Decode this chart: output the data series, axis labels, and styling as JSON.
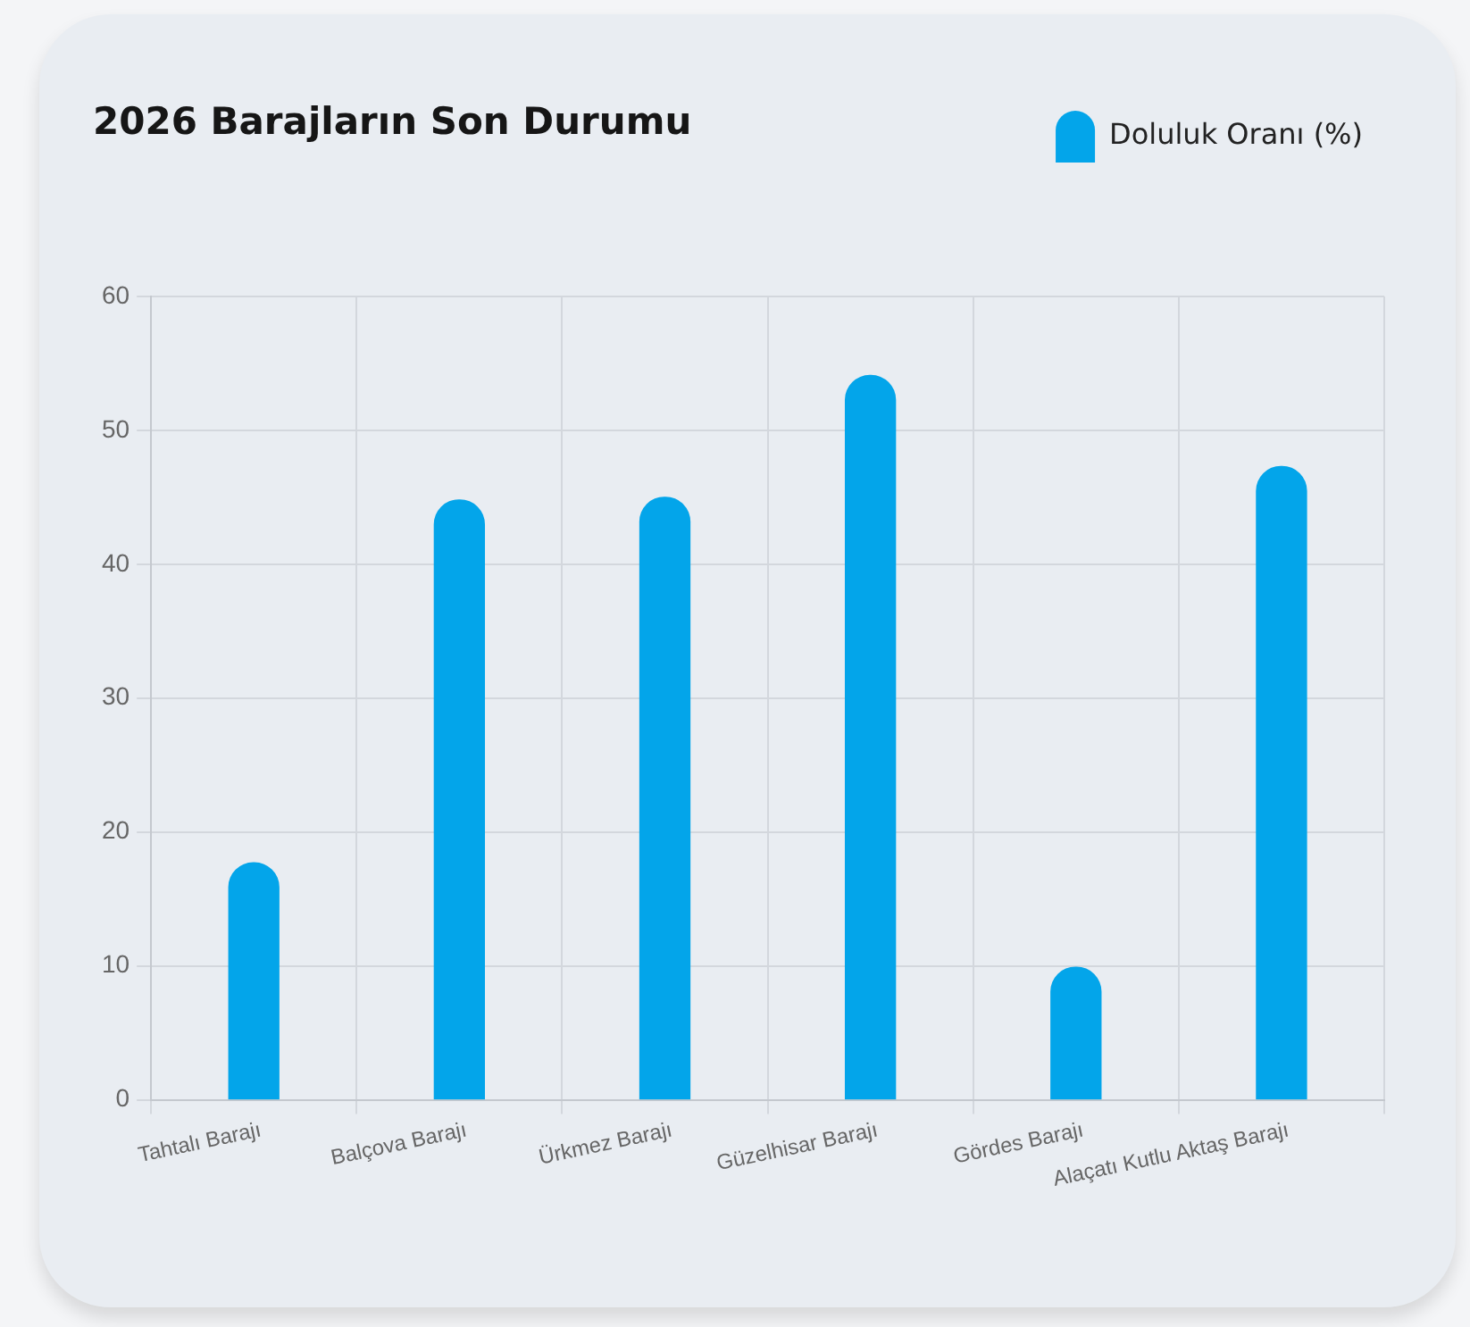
{
  "chart_data": {
    "type": "bar",
    "title": "2026 Barajların Son Durumu",
    "categories": [
      "Tahtalı Barajı",
      "Balçova Barajı",
      "Ürkmez Barajı",
      "Güzelhisar Barajı",
      "Gördes Barajı",
      "Alaçatı Kutlu Aktaş Barajı"
    ],
    "series": [
      {
        "name": "Doluluk Oranı (%)",
        "color": "#03a5ea",
        "values": [
          17.7,
          44.8,
          45.0,
          54.1,
          9.9,
          47.3
        ]
      }
    ],
    "ylim": [
      0,
      60
    ],
    "yticks": [
      0,
      10,
      20,
      30,
      40,
      50,
      60
    ],
    "grid": true,
    "legend": "top right"
  }
}
